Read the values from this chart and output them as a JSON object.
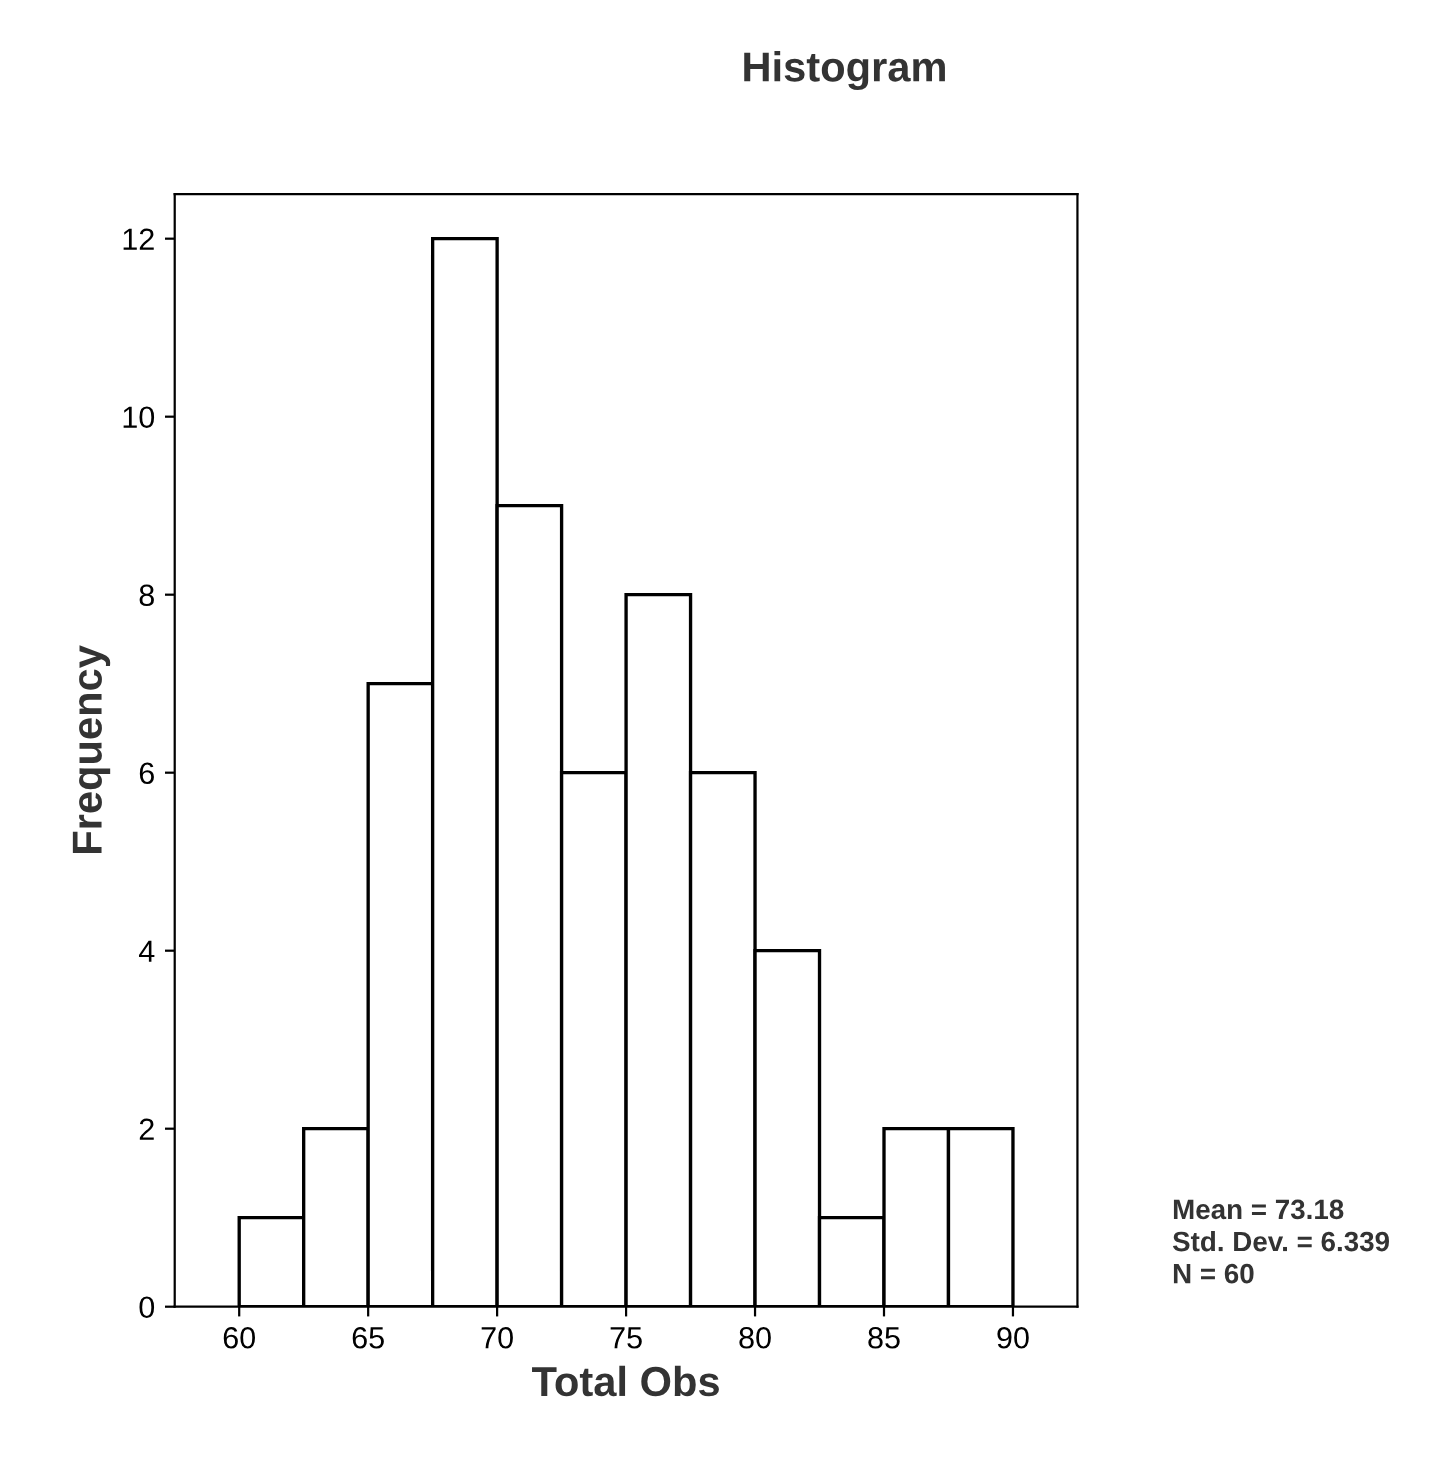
{
  "chart_data": {
    "type": "histogram",
    "title": "Histogram",
    "xlabel": "Total Obs",
    "ylabel": "Frequency",
    "bins": [
      60,
      62.5,
      65,
      67.5,
      70,
      72.5,
      75,
      77.5,
      80,
      82.5,
      85,
      87.5,
      90
    ],
    "values": [
      1,
      2,
      7,
      12,
      9,
      6,
      8,
      6,
      4,
      1,
      2,
      2
    ],
    "color": "#ffffff",
    "xlim": [
      57.5,
      92.5
    ],
    "xticks": [
      60,
      65,
      70,
      75,
      80,
      85,
      90
    ],
    "ylim": [
      0,
      12.5
    ],
    "yticks": [
      0,
      2,
      4,
      6,
      8,
      10,
      12
    ],
    "grid": false,
    "annotations": [
      "Mean = 73.18",
      "Std. Dev. = 6.339",
      "N = 60"
    ]
  }
}
